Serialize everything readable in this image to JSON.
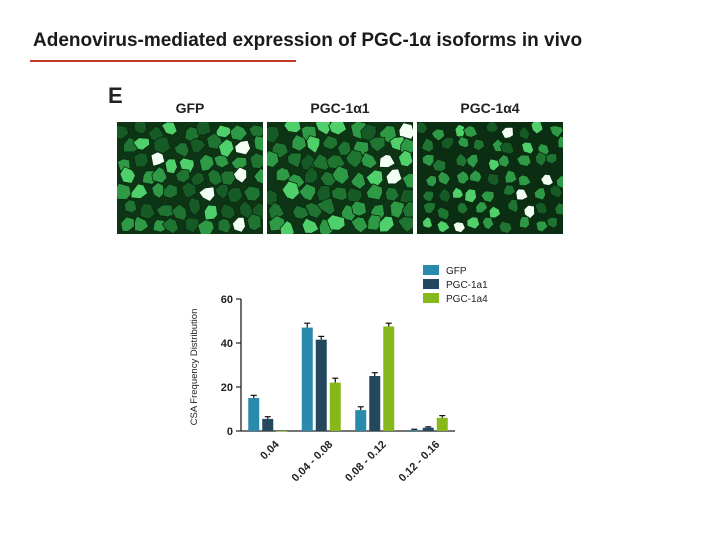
{
  "slide": {
    "title": "Adenovirus-mediated expression of PGC-1α isoforms in vivo",
    "panel_letter": "E"
  },
  "images": [
    {
      "label": "GFP"
    },
    {
      "label": "PGC-1α1"
    },
    {
      "label": "PGC-1α4"
    }
  ],
  "chart_data": {
    "type": "bar",
    "categories": [
      "0.04",
      "0.04 - 0.08",
      "0.08 - 0.12",
      "0.12 - 0.16"
    ],
    "ylabel": "CSA Frequency Distribution",
    "xlabel": "",
    "ylim": [
      0,
      60
    ],
    "yticks": [
      "0",
      "20",
      "40",
      "60"
    ],
    "legend_position": "top-right",
    "series": [
      {
        "name": "GFP",
        "color": "#2a8aab",
        "values": [
          15,
          47,
          9.5,
          0.5
        ],
        "errors": [
          1.2,
          2.0,
          1.5,
          0.3
        ]
      },
      {
        "name": "PGC-1a1",
        "color": "#24495e",
        "values": [
          5.5,
          41.5,
          25,
          1.5
        ],
        "errors": [
          1.0,
          1.5,
          1.5,
          0.4
        ]
      },
      {
        "name": "PGC-1a4",
        "color": "#86b81c",
        "values": [
          0,
          22,
          47.5,
          6
        ],
        "errors": [
          0,
          2.0,
          1.5,
          1.0
        ]
      }
    ]
  }
}
